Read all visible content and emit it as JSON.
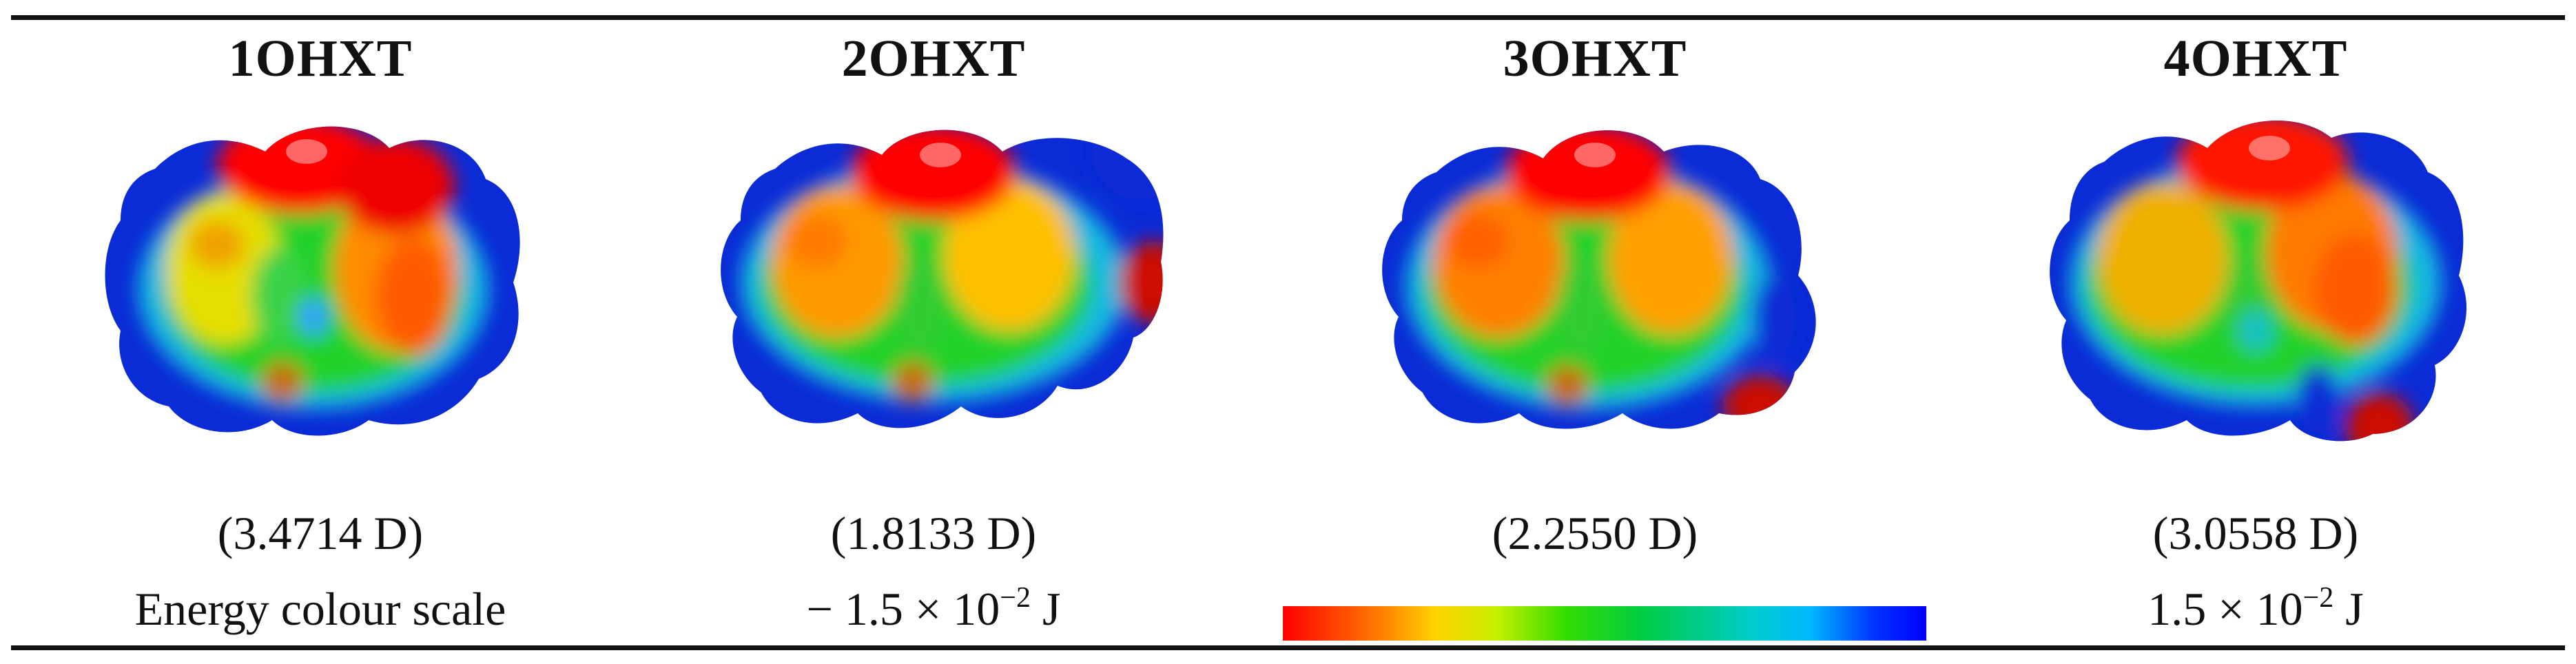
{
  "molecules": [
    {
      "name": "1OHXT",
      "dipole": "(3.4714 D)"
    },
    {
      "name": "2OHXT",
      "dipole": "(1.8133 D)"
    },
    {
      "name": "3OHXT",
      "dipole": "(2.2550 D)"
    },
    {
      "name": "4OHXT",
      "dipole": "(3.0558 D)"
    }
  ],
  "scale": {
    "label": "Energy colour scale",
    "min_prefix": "− 1.5 × 10",
    "min_exp": "−2",
    "min_unit": " J",
    "max_prefix": "1.5 × 10",
    "max_exp": "−2",
    "max_unit": " J",
    "colors": [
      "#ff0000",
      "#ff6a00",
      "#ffd400",
      "#c8ef00",
      "#33dd00",
      "#00cc44",
      "#00cccc",
      "#00b8ff",
      "#0033ff",
      "#0000ff"
    ]
  }
}
